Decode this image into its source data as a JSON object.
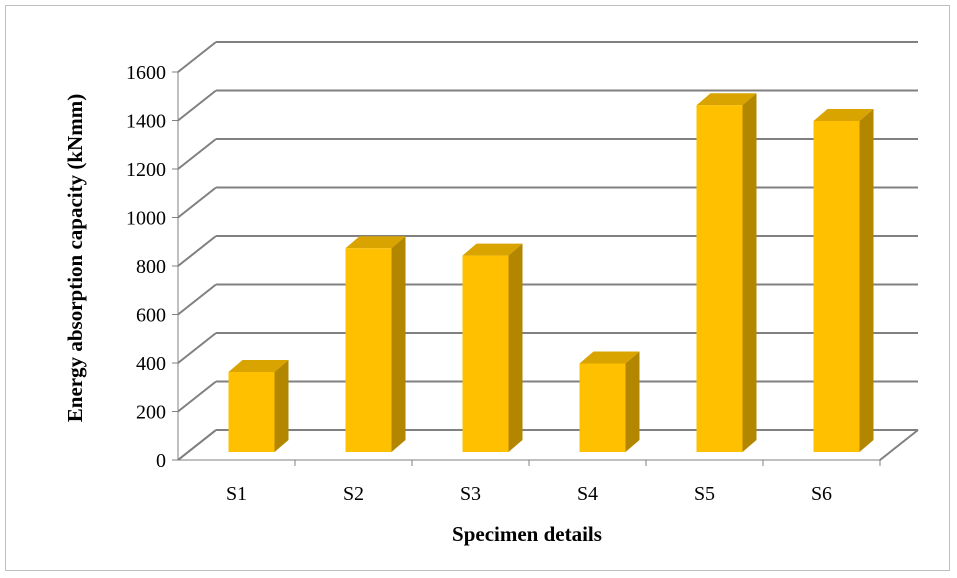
{
  "chart_data": {
    "type": "bar",
    "style": "3d-column",
    "title": "",
    "xlabel": "Specimen details",
    "ylabel": "Energy absorption capacity (kNmm)",
    "categories": [
      "S1",
      "S2",
      "S3",
      "S4",
      "S5",
      "S6"
    ],
    "values": [
      330,
      840,
      810,
      365,
      1430,
      1365
    ],
    "ylim": [
      0,
      1600
    ],
    "yticks": [
      "0",
      "200",
      "400",
      "600",
      "800",
      "1000",
      "1200",
      "1400",
      "1600"
    ],
    "grid": true,
    "legend": "none",
    "colors": {
      "bar_front": "#ffc000",
      "bar_side": "#b38600",
      "bar_top": "#d9a300",
      "gridline": "#808080",
      "axis": "#808080"
    }
  }
}
